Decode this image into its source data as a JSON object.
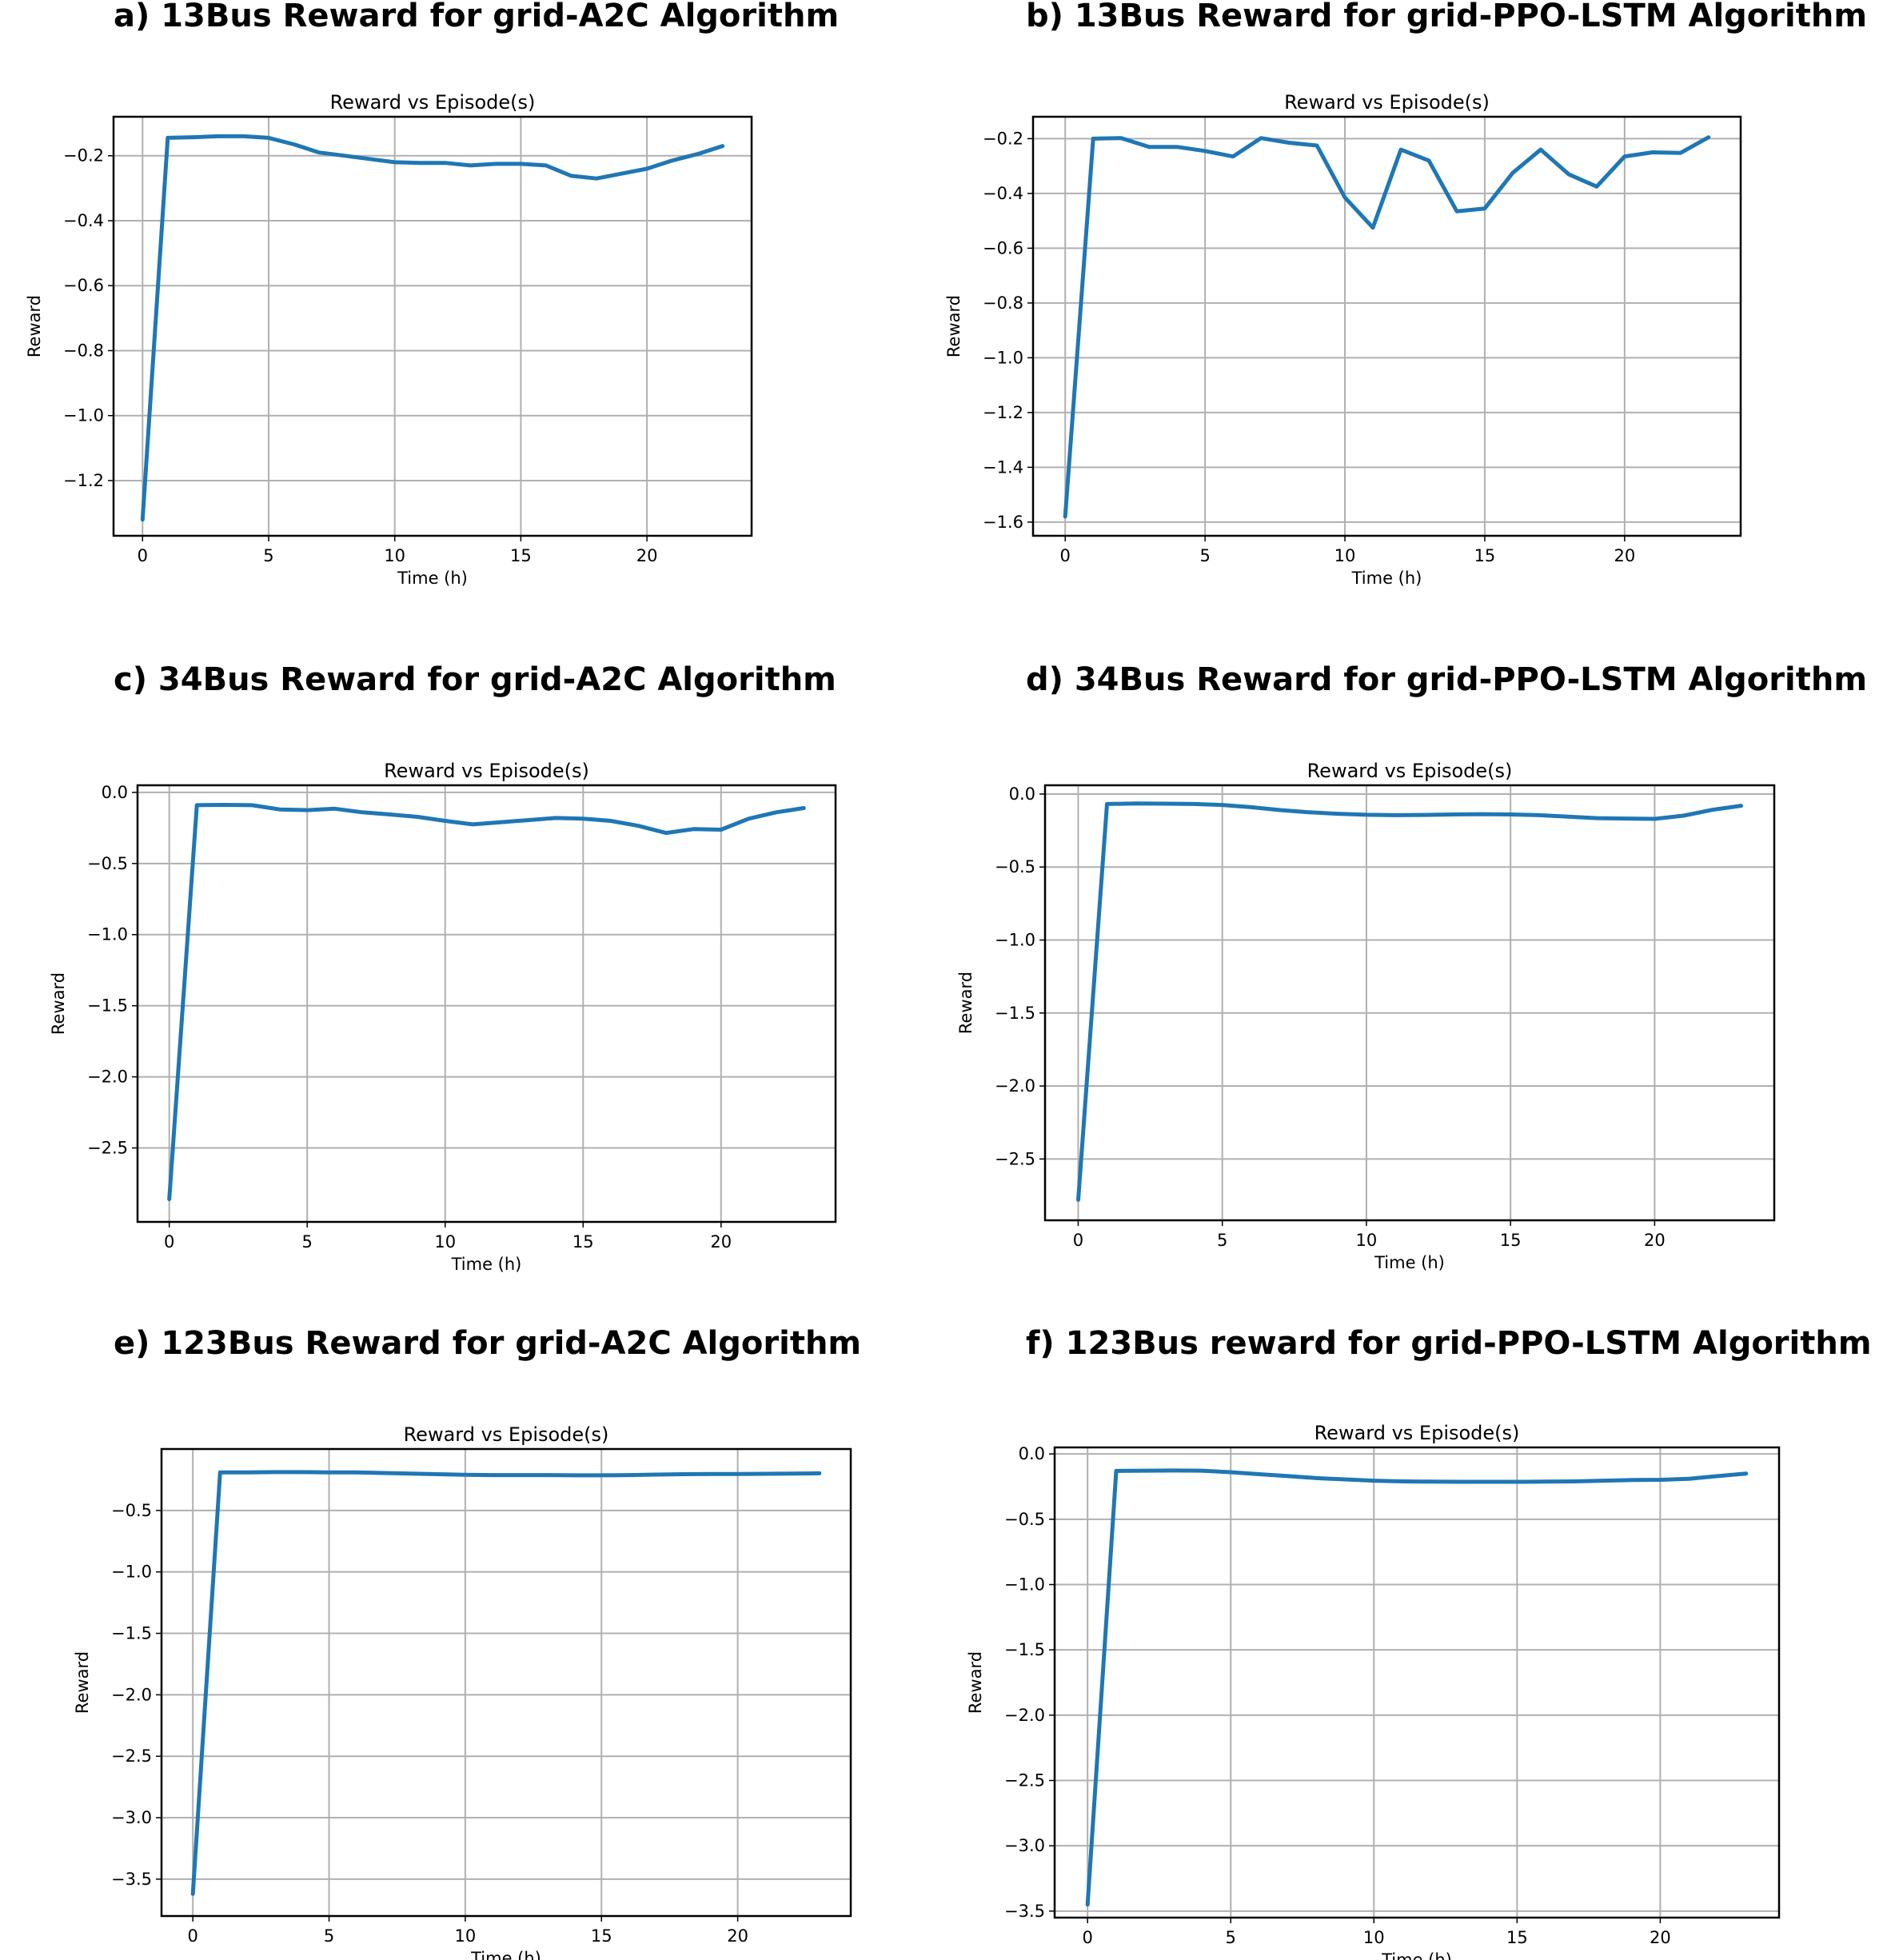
{
  "colors": {
    "series": "#1f77b4",
    "grid": "#b0b0b0",
    "frame": "#000000"
  },
  "chart_data": [
    {
      "heading": "a) 13Bus Reward for grid-A2C Algorithm",
      "type": "line",
      "title": "Reward vs Episode(s)",
      "xlabel": "Time (h)",
      "ylabel": "Reward",
      "xlim": [
        -1.15,
        24.15
      ],
      "ylim": [
        -1.37,
        -0.08
      ],
      "xticks": [
        0,
        5,
        10,
        15,
        20
      ],
      "yticks": [
        -0.2,
        -0.4,
        -0.6,
        -0.8,
        -1.0,
        -1.2
      ],
      "ytick_labels": [
        "−0.2",
        "−0.4",
        "−0.6",
        "−0.8",
        "−1.0",
        "−1.2"
      ],
      "grid": true,
      "x": [
        0,
        1,
        2,
        3,
        4,
        5,
        6,
        7,
        8,
        9,
        10,
        11,
        12,
        13,
        14,
        15,
        16,
        17,
        18,
        19,
        20,
        21,
        22,
        23
      ],
      "series": [
        {
          "values": [
            -1.32,
            -0.145,
            -0.143,
            -0.14,
            -0.14,
            -0.145,
            -0.165,
            -0.19,
            -0.2,
            -0.21,
            -0.22,
            -0.222,
            -0.222,
            -0.23,
            -0.225,
            -0.225,
            -0.23,
            -0.262,
            -0.27,
            -0.255,
            -0.24,
            -0.215,
            -0.195,
            -0.17
          ]
        }
      ]
    },
    {
      "heading": "b) 13Bus Reward for grid-PPO-LSTM Algorithm",
      "type": "line",
      "title": "Reward vs Episode(s)",
      "xlabel": "Time (h)",
      "ylabel": "Reward",
      "xlim": [
        -1.15,
        24.15
      ],
      "ylim": [
        -1.65,
        -0.12
      ],
      "xticks": [
        0,
        5,
        10,
        15,
        20
      ],
      "yticks": [
        -0.2,
        -0.4,
        -0.6,
        -0.8,
        -1.0,
        -1.2,
        -1.4,
        -1.6
      ],
      "ytick_labels": [
        "−0.2",
        "−0.4",
        "−0.6",
        "−0.8",
        "−1.0",
        "−1.2",
        "−1.4",
        "−1.6"
      ],
      "grid": true,
      "x": [
        0,
        1,
        2,
        3,
        4,
        5,
        6,
        7,
        8,
        9,
        10,
        11,
        12,
        13,
        14,
        15,
        16,
        17,
        18,
        19,
        20,
        21,
        22,
        23
      ],
      "series": [
        {
          "values": [
            -1.58,
            -0.2,
            -0.198,
            -0.23,
            -0.23,
            -0.245,
            -0.265,
            -0.198,
            -0.215,
            -0.225,
            -0.415,
            -0.525,
            -0.24,
            -0.28,
            -0.465,
            -0.455,
            -0.325,
            -0.24,
            -0.33,
            -0.375,
            -0.265,
            -0.25,
            -0.252,
            -0.195
          ]
        }
      ]
    },
    {
      "heading": "c) 34Bus Reward for grid-A2C Algorithm",
      "type": "line",
      "title": "Reward vs Episode(s)",
      "xlabel": "Time (h)",
      "ylabel": "Reward",
      "xlim": [
        -1.15,
        24.15
      ],
      "ylim": [
        -3.02,
        0.05
      ],
      "xticks": [
        0,
        5,
        10,
        15,
        20
      ],
      "yticks": [
        0.0,
        -0.5,
        -1.0,
        -1.5,
        -2.0,
        -2.5
      ],
      "ytick_labels": [
        "0.0",
        "−0.5",
        "−1.0",
        "−1.5",
        "−2.0",
        "−2.5"
      ],
      "grid": true,
      "x": [
        0,
        1,
        2,
        3,
        4,
        5,
        6,
        7,
        8,
        9,
        10,
        11,
        12,
        13,
        14,
        15,
        16,
        17,
        18,
        19,
        20,
        21,
        22,
        23
      ],
      "series": [
        {
          "values": [
            -2.86,
            -0.09,
            -0.088,
            -0.09,
            -0.12,
            -0.125,
            -0.115,
            -0.14,
            -0.155,
            -0.172,
            -0.2,
            -0.225,
            -0.21,
            -0.195,
            -0.18,
            -0.185,
            -0.2,
            -0.235,
            -0.285,
            -0.258,
            -0.262,
            -0.185,
            -0.14,
            -0.11
          ]
        }
      ]
    },
    {
      "heading": "d) 34Bus Reward for grid-PPO-LSTM Algorithm",
      "type": "line",
      "title": "Reward vs Episode(s)",
      "xlabel": "Time (h)",
      "ylabel": "Reward",
      "xlim": [
        -1.15,
        24.15
      ],
      "ylim": [
        -2.92,
        0.06
      ],
      "xticks": [
        0,
        5,
        10,
        15,
        20
      ],
      "yticks": [
        0.0,
        -0.5,
        -1.0,
        -1.5,
        -2.0,
        -2.5
      ],
      "ytick_labels": [
        "0.0",
        "−0.5",
        "−1.0",
        "−1.5",
        "−2.0",
        "−2.5"
      ],
      "grid": true,
      "x": [
        0,
        1,
        2,
        3,
        4,
        5,
        6,
        7,
        8,
        9,
        10,
        11,
        12,
        13,
        14,
        15,
        16,
        17,
        18,
        19,
        20,
        21,
        22,
        23
      ],
      "series": [
        {
          "values": [
            -2.78,
            -0.068,
            -0.065,
            -0.066,
            -0.068,
            -0.075,
            -0.09,
            -0.11,
            -0.125,
            -0.135,
            -0.142,
            -0.145,
            -0.143,
            -0.14,
            -0.138,
            -0.14,
            -0.145,
            -0.155,
            -0.165,
            -0.168,
            -0.17,
            -0.148,
            -0.108,
            -0.08
          ]
        }
      ]
    },
    {
      "heading": "e) 123Bus Reward for grid-A2C Algorithm",
      "type": "line",
      "title": "Reward vs Episode(s)",
      "xlabel": "Time (h)",
      "ylabel": "Reward",
      "xlim": [
        -1.15,
        24.15
      ],
      "ylim": [
        -3.8,
        0.0
      ],
      "xticks": [
        0,
        5,
        10,
        15,
        20
      ],
      "yticks": [
        -0.5,
        -1.0,
        -1.5,
        -2.0,
        -2.5,
        -3.0,
        -3.5
      ],
      "ytick_labels": [
        "−0.5",
        "−1.0",
        "−1.5",
        "−2.0",
        "−2.5",
        "−3.0",
        "−3.5"
      ],
      "grid": true,
      "x": [
        0,
        1,
        2,
        3,
        4,
        5,
        6,
        7,
        8,
        9,
        10,
        11,
        12,
        13,
        14,
        15,
        16,
        17,
        18,
        19,
        20,
        21,
        22,
        23
      ],
      "series": [
        {
          "values": [
            -3.62,
            -0.19,
            -0.19,
            -0.188,
            -0.188,
            -0.19,
            -0.19,
            -0.195,
            -0.2,
            -0.205,
            -0.21,
            -0.212,
            -0.212,
            -0.212,
            -0.214,
            -0.214,
            -0.212,
            -0.208,
            -0.205,
            -0.203,
            -0.203,
            -0.202,
            -0.2,
            -0.198
          ]
        }
      ]
    },
    {
      "heading": "f) 123Bus reward for grid-PPO-LSTM Algorithm",
      "type": "line",
      "title": "Reward vs Episode(s)",
      "xlabel": "Time (h)",
      "ylabel": "Reward",
      "xlim": [
        -1.15,
        24.15
      ],
      "ylim": [
        -3.55,
        0.05
      ],
      "xticks": [
        0,
        5,
        10,
        15,
        20
      ],
      "yticks": [
        0.0,
        -0.5,
        -1.0,
        -1.5,
        -2.0,
        -2.5,
        -3.0,
        -3.5
      ],
      "ytick_labels": [
        "0.0",
        "−0.5",
        "−1.0",
        "−1.5",
        "−2.0",
        "−2.5",
        "−3.0",
        "−3.5"
      ],
      "grid": true,
      "x": [
        0,
        1,
        2,
        3,
        4,
        5,
        6,
        7,
        8,
        9,
        10,
        11,
        12,
        13,
        14,
        15,
        16,
        17,
        18,
        19,
        20,
        21,
        22,
        23
      ],
      "series": [
        {
          "values": [
            -3.45,
            -0.13,
            -0.128,
            -0.127,
            -0.128,
            -0.14,
            -0.155,
            -0.17,
            -0.185,
            -0.195,
            -0.205,
            -0.21,
            -0.212,
            -0.213,
            -0.213,
            -0.213,
            -0.212,
            -0.21,
            -0.205,
            -0.2,
            -0.198,
            -0.19,
            -0.17,
            -0.15
          ]
        }
      ]
    }
  ]
}
